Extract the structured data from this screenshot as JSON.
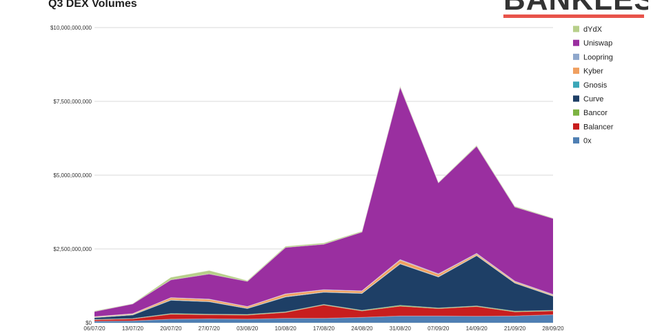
{
  "title": "Q3 DEX Volumes",
  "brand": {
    "name": "BANKLESS",
    "accent": "#e8534a"
  },
  "chart_data": {
    "type": "area",
    "stacked": true,
    "title": "Q3 DEX Volumes",
    "xlabel": "",
    "ylabel": "",
    "x": [
      "06/07/20",
      "13/07/20",
      "20/07/20",
      "27/07/20",
      "03/08/20",
      "10/08/20",
      "17/08/20",
      "24/08/20",
      "31/08/20",
      "07/09/20",
      "14/09/20",
      "21/09/20",
      "28/09/20"
    ],
    "ylim": [
      0,
      10000000000
    ],
    "yticks": [
      0,
      2500000000,
      5000000000,
      7500000000,
      10000000000
    ],
    "ytick_labels": [
      "$0",
      "$2,500,000,000",
      "$5,000,000,000",
      "$7,500,000,000",
      "$10,000,000,000"
    ],
    "grid": true,
    "legend_position": "right",
    "series": [
      {
        "name": "0x",
        "color": "#4f7fb3",
        "values": [
          50000000,
          60000000,
          120000000,
          130000000,
          120000000,
          150000000,
          150000000,
          180000000,
          230000000,
          230000000,
          220000000,
          230000000,
          270000000
        ]
      },
      {
        "name": "Balancer",
        "color": "#c81e1e",
        "values": [
          50000000,
          70000000,
          170000000,
          140000000,
          140000000,
          200000000,
          450000000,
          220000000,
          330000000,
          250000000,
          330000000,
          140000000,
          130000000
        ]
      },
      {
        "name": "Bancor",
        "color": "#7cb342",
        "values": [
          10000000,
          10000000,
          20000000,
          20000000,
          20000000,
          20000000,
          20000000,
          20000000,
          30000000,
          20000000,
          20000000,
          20000000,
          20000000
        ]
      },
      {
        "name": "Curve",
        "color": "#1e3f66",
        "values": [
          60000000,
          120000000,
          450000000,
          420000000,
          200000000,
          500000000,
          410000000,
          570000000,
          1400000000,
          1050000000,
          1700000000,
          950000000,
          480000000
        ]
      },
      {
        "name": "Gnosis",
        "color": "#3ba7b8",
        "values": [
          10000000,
          10000000,
          10000000,
          10000000,
          10000000,
          10000000,
          10000000,
          10000000,
          10000000,
          10000000,
          10000000,
          10000000,
          10000000
        ]
      },
      {
        "name": "Kyber",
        "color": "#f0a060",
        "values": [
          20000000,
          30000000,
          70000000,
          70000000,
          50000000,
          90000000,
          70000000,
          70000000,
          120000000,
          80000000,
          50000000,
          40000000,
          30000000
        ]
      },
      {
        "name": "Loopring",
        "color": "#8fa8cc",
        "values": [
          5000000,
          5000000,
          10000000,
          10000000,
          10000000,
          10000000,
          10000000,
          10000000,
          20000000,
          20000000,
          20000000,
          20000000,
          20000000
        ]
      },
      {
        "name": "Uniswap",
        "color": "#9a2fa0",
        "values": [
          170000000,
          330000000,
          600000000,
          850000000,
          850000000,
          1570000000,
          1540000000,
          1990000000,
          5840000000,
          3080000000,
          3630000000,
          2510000000,
          2570000000
        ]
      },
      {
        "name": "dYdX",
        "color": "#b7cf8a",
        "values": [
          25000000,
          15000000,
          90000000,
          120000000,
          30000000,
          40000000,
          40000000,
          30000000,
          40000000,
          20000000,
          30000000,
          30000000,
          20000000
        ]
      }
    ],
    "legend_order": [
      "dYdX",
      "Uniswap",
      "Loopring",
      "Kyber",
      "Gnosis",
      "Curve",
      "Bancor",
      "Balancer",
      "0x"
    ]
  }
}
